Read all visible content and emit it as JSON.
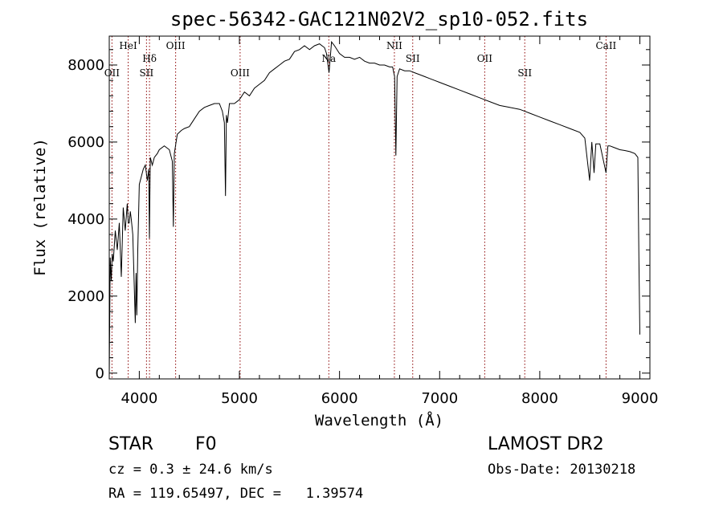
{
  "chart_data": {
    "type": "line",
    "title": "spec-56342-GAC121N02V2_sp10-052.fits",
    "xlabel": "Wavelength (Å)",
    "ylabel": "Flux (relative)",
    "xlim": [
      3700,
      9100
    ],
    "ylim": [
      -150,
      8750
    ],
    "xticks": [
      4000,
      5000,
      6000,
      7000,
      8000,
      9000
    ],
    "yticks": [
      0,
      2000,
      4000,
      6000,
      8000
    ],
    "grid": false,
    "series": [
      {
        "color": "#000000",
        "x": [
          3700,
          3710,
          3720,
          3730,
          3740,
          3760,
          3780,
          3800,
          3820,
          3840,
          3860,
          3880,
          3890,
          3900,
          3910,
          3920,
          3935,
          3950,
          3960,
          3968,
          3975,
          3985,
          4000,
          4020,
          4040,
          4060,
          4080,
          4095,
          4101,
          4110,
          4130,
          4150,
          4180,
          4200,
          4250,
          4300,
          4330,
          4340,
          4350,
          4380,
          4420,
          4450,
          4500,
          4550,
          4600,
          4650,
          4700,
          4750,
          4800,
          4830,
          4850,
          4861,
          4870,
          4880,
          4900,
          4950,
          5000,
          5050,
          5100,
          5150,
          5200,
          5250,
          5300,
          5350,
          5400,
          5450,
          5500,
          5550,
          5600,
          5650,
          5700,
          5750,
          5800,
          5850,
          5870,
          5895,
          5920,
          5950,
          6000,
          6050,
          6100,
          6150,
          6200,
          6250,
          6300,
          6350,
          6400,
          6450,
          6500,
          6530,
          6550,
          6563,
          6575,
          6600,
          6650,
          6700,
          6750,
          6800,
          6850,
          6900,
          6950,
          7000,
          7100,
          7200,
          7300,
          7400,
          7500,
          7600,
          7700,
          7800,
          7900,
          8000,
          8100,
          8200,
          8300,
          8400,
          8450,
          8498,
          8520,
          8542,
          8560,
          8600,
          8662,
          8680,
          8700,
          8750,
          8800,
          8850,
          8900,
          8950,
          8980,
          8990,
          9000
        ],
        "y": [
          -50,
          3000,
          2400,
          3100,
          2900,
          3700,
          3200,
          3900,
          2500,
          4300,
          3700,
          4400,
          3900,
          3900,
          4200,
          4000,
          3600,
          2200,
          1300,
          2600,
          1500,
          3200,
          4900,
          5100,
          5300,
          5400,
          5000,
          5300,
          3500,
          5600,
          5400,
          5600,
          5700,
          5800,
          5900,
          5800,
          5500,
          3800,
          5700,
          6200,
          6300,
          6350,
          6400,
          6600,
          6800,
          6900,
          6950,
          7000,
          7000,
          6800,
          6500,
          4600,
          6700,
          6500,
          7000,
          7000,
          7100,
          7300,
          7200,
          7400,
          7500,
          7600,
          7800,
          7900,
          8000,
          8100,
          8150,
          8350,
          8400,
          8500,
          8400,
          8500,
          8550,
          8450,
          8300,
          7800,
          8600,
          8500,
          8300,
          8200,
          8200,
          8150,
          8200,
          8100,
          8050,
          8050,
          8000,
          8000,
          7950,
          7950,
          7700,
          5650,
          7700,
          7900,
          7850,
          7850,
          7800,
          7750,
          7700,
          7650,
          7600,
          7550,
          7450,
          7350,
          7250,
          7150,
          7050,
          6950,
          6900,
          6850,
          6750,
          6650,
          6550,
          6450,
          6350,
          6250,
          6100,
          5000,
          6000,
          5200,
          5950,
          5950,
          5200,
          5900,
          5900,
          5850,
          5800,
          5780,
          5750,
          5700,
          5600,
          3000,
          1000
        ]
      }
    ],
    "annotations": [
      {
        "label": "OII",
        "x": 3727,
        "row": "low"
      },
      {
        "label": "HeI",
        "x": 3889,
        "row": "top"
      },
      {
        "label": "Hδ",
        "x": 4102,
        "row": "mid"
      },
      {
        "label": "SII",
        "x": 4072,
        "row": "low"
      },
      {
        "label": "OIII",
        "x": 4363,
        "row": "top"
      },
      {
        "label": "OIII",
        "x": 5007,
        "row": "low"
      },
      {
        "label": "Na",
        "x": 5893,
        "row": "mid"
      },
      {
        "label": "NII",
        "x": 6548,
        "row": "top"
      },
      {
        "label": "SII",
        "x": 6731,
        "row": "mid"
      },
      {
        "label": "OII",
        "x": 7450,
        "row": "mid"
      },
      {
        "label": "SII",
        "x": 7850,
        "row": "low"
      },
      {
        "label": "CaII",
        "x": 8662,
        "row": "top"
      }
    ]
  },
  "info": {
    "object_class": "STAR",
    "subclass": "F0",
    "survey": "LAMOST DR2",
    "redshift_line": "cz = 0.3 ± 24.6 km/s",
    "obs_date_line": "Obs-Date: 20130218",
    "coords_line": "RA = 119.65497, DEC =   1.39574"
  },
  "colors": {
    "spectrum": "#000000",
    "line_markers": "#8b0000",
    "background": "#ffffff"
  }
}
